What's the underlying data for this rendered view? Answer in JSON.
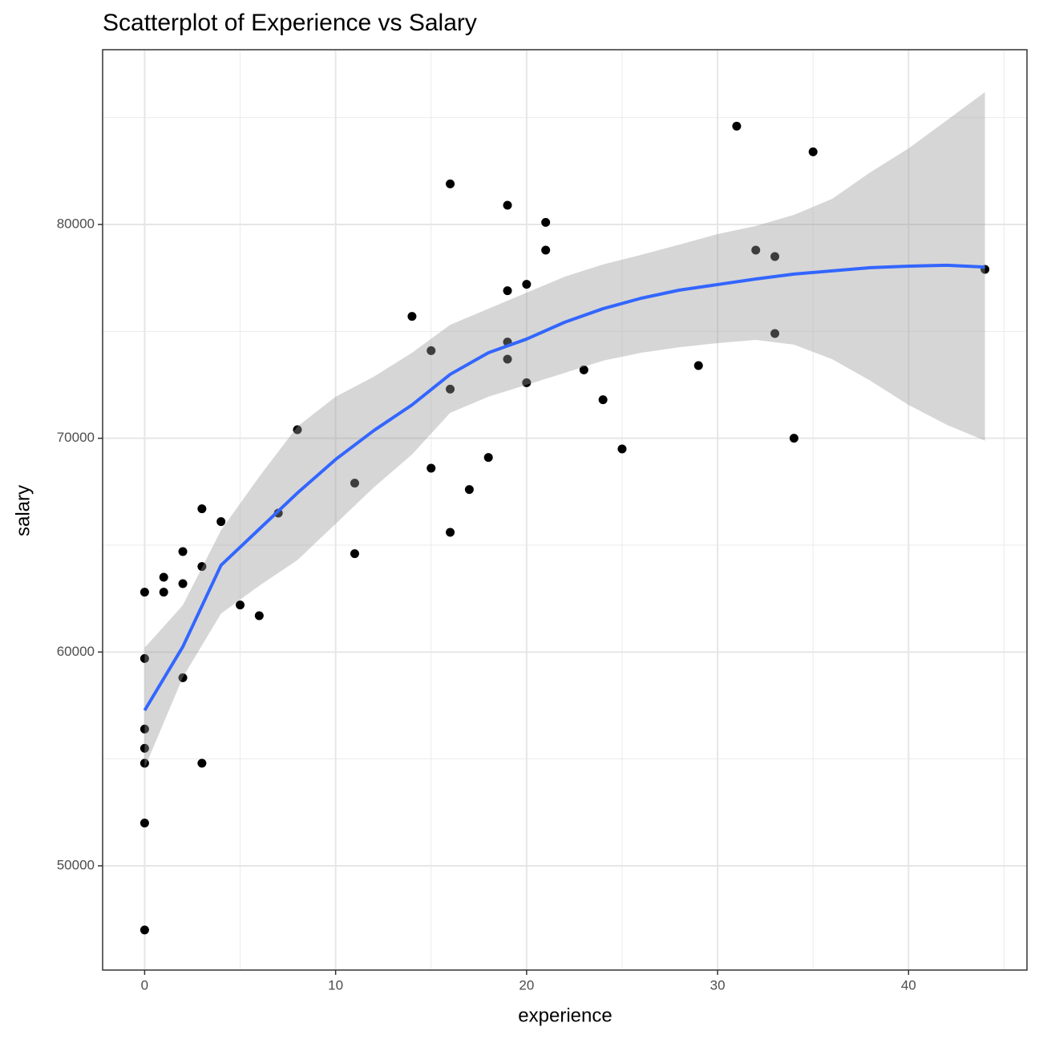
{
  "chart_data": {
    "type": "scatter",
    "title": "Scatterplot of Experience vs Salary",
    "x_label": "experience",
    "y_label": "salary",
    "xlim": [
      -2.2,
      46.2
    ],
    "ylim": [
      45125,
      88175
    ],
    "xticks": [
      0,
      10,
      20,
      30,
      40
    ],
    "yticks": [
      50000,
      60000,
      70000,
      80000
    ],
    "x_minor_grid": [
      5,
      15,
      25,
      35,
      45
    ],
    "y_minor_grid": [
      55000,
      65000,
      75000,
      85000
    ],
    "grid": true,
    "point_color": "#000000",
    "x": [
      0,
      0,
      0,
      0,
      0,
      0,
      0,
      1,
      1,
      2,
      2,
      2,
      3,
      3,
      3,
      4,
      5,
      6,
      7,
      8,
      11,
      11,
      14,
      15,
      15,
      16,
      16,
      16,
      17,
      18,
      19,
      19,
      19,
      19,
      20,
      20,
      21,
      21,
      23,
      24,
      25,
      29,
      31,
      32,
      33,
      33,
      34,
      35,
      44
    ],
    "values": [
      62800,
      59700,
      56400,
      55500,
      54800,
      52000,
      47000,
      63500,
      62800,
      64700,
      63200,
      58800,
      66700,
      64000,
      54800,
      66100,
      62200,
      61700,
      66500,
      70400,
      67900,
      64600,
      75700,
      74100,
      68600,
      81900,
      72300,
      65600,
      67600,
      69100,
      80900,
      76900,
      74500,
      73700,
      77200,
      72600,
      80100,
      78800,
      73200,
      71800,
      69500,
      73400,
      84600,
      78800,
      78500,
      74900,
      70000,
      83400,
      77900
    ],
    "smooth": {
      "color": "#3366ff",
      "band_color": "#999999",
      "x": [
        0,
        2,
        4,
        6,
        8,
        10,
        12,
        14,
        16,
        18,
        20,
        22,
        24,
        26,
        28,
        30,
        32,
        34,
        36,
        38,
        40,
        42,
        44
      ],
      "fit": [
        57270,
        60250,
        64060,
        65750,
        67440,
        69010,
        70360,
        71560,
        72990,
        74000,
        74640,
        75430,
        76060,
        76550,
        76930,
        77190,
        77450,
        77680,
        77830,
        77980,
        78050,
        78090,
        78010
      ],
      "lower": [
        54580,
        58820,
        61800,
        63100,
        64300,
        66000,
        67700,
        69240,
        71190,
        71940,
        72500,
        73060,
        73630,
        74000,
        74260,
        74450,
        74600,
        74380,
        73700,
        72690,
        71560,
        70630,
        69890
      ],
      "upper": [
        60200,
        62190,
        65700,
        68200,
        70550,
        71940,
        72880,
        74000,
        75310,
        76060,
        76810,
        77560,
        78130,
        78580,
        79060,
        79550,
        79930,
        80450,
        81200,
        82440,
        83560,
        84870,
        86190
      ]
    }
  }
}
